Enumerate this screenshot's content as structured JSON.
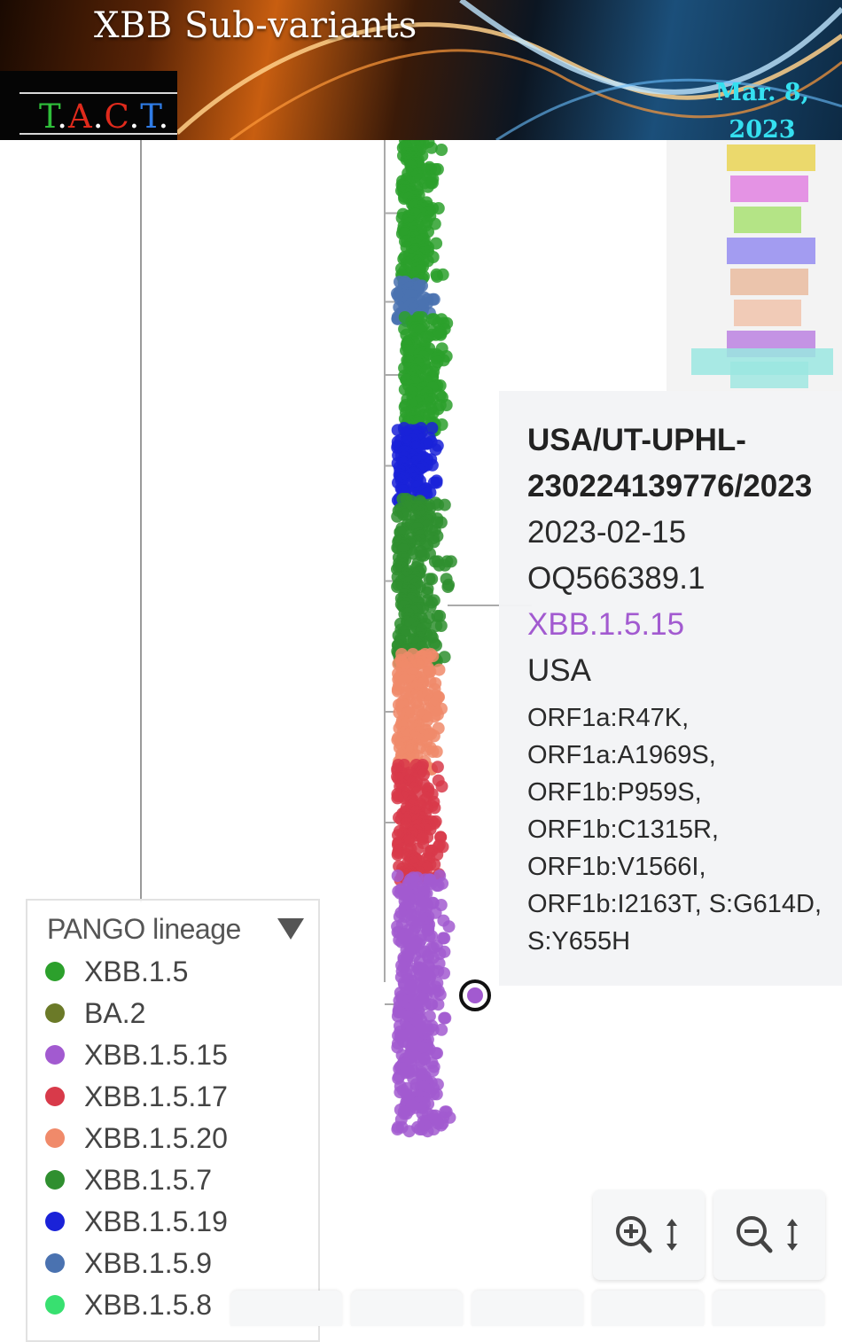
{
  "banner": {
    "title": "XBB Sub-variants",
    "logo_letters": [
      {
        "text": "T",
        "color": "#2fbf3a"
      },
      {
        "text": ".",
        "color": "#ffffff"
      },
      {
        "text": "A",
        "color": "#e02a1c"
      },
      {
        "text": ".",
        "color": "#ffffff"
      },
      {
        "text": "C",
        "color": "#e02a1c"
      },
      {
        "text": ".",
        "color": "#ffffff"
      },
      {
        "text": "T",
        "color": "#2f7ce6"
      },
      {
        "text": ".",
        "color": "#ffffff"
      }
    ],
    "date_line1": "Mar. 8,",
    "date_line2": "2023"
  },
  "tooltip": {
    "strain_line1": "USA/UT-UPHL-",
    "strain_line2": "230224139776/2023",
    "date": "2023-02-15",
    "accession": "OQ566389.1",
    "lineage": "XBB.1.5.15",
    "country": "USA",
    "mutations": "ORF1a:R47K,\nORF1a:A1969S,\nORF1b:P959S,\nORF1b:C1315R,\nORF1b:V1566I,\nORF1b:I2163T, S:G614D,\nS:Y655H"
  },
  "legend": {
    "title": "PANGO lineage",
    "toggle_icon": "triangle-down-icon",
    "items": [
      {
        "label": "XBB.1.5",
        "color": "#2ca02c"
      },
      {
        "label": "BA.2",
        "color": "#6b7a28"
      },
      {
        "label": "XBB.1.5.15",
        "color": "#a25ad0"
      },
      {
        "label": "XBB.1.5.17",
        "color": "#d83a4a"
      },
      {
        "label": "XBB.1.5.20",
        "color": "#f08a6a"
      },
      {
        "label": "XBB.1.5.7",
        "color": "#2f8f2f"
      },
      {
        "label": "XBB.1.5.19",
        "color": "#1a22d8"
      },
      {
        "label": "XBB.1.5.9",
        "color": "#4a72b0"
      },
      {
        "label": "XBB.1.5.8",
        "color": "#38e070"
      }
    ]
  },
  "controls": {
    "zoom_in_icon": "zoom-in-vertical-icon",
    "zoom_out_icon": "zoom-out-vertical-icon"
  }
}
